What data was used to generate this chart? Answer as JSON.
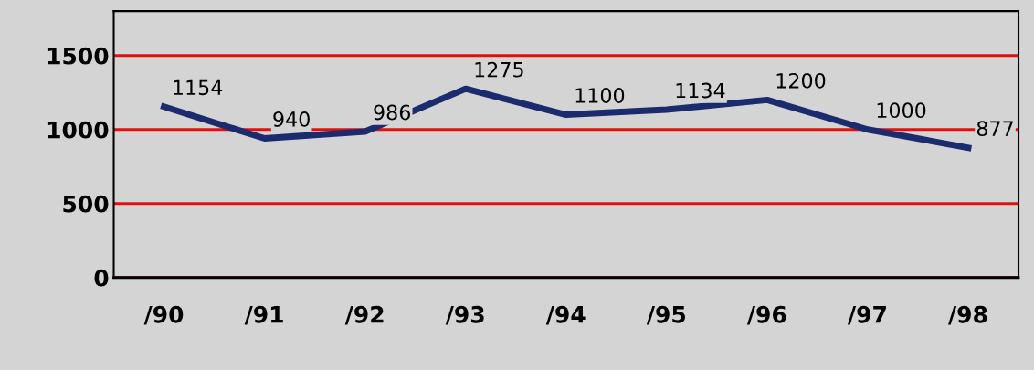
{
  "chart_data": {
    "type": "line",
    "categories": [
      "/90",
      "/91",
      "/92",
      "/93",
      "/94",
      "/95",
      "/96",
      "/97",
      "/98"
    ],
    "series": [
      {
        "color": "#1c2a6e",
        "values": [
          1154,
          940,
          986,
          1275,
          1100,
          1134,
          1200,
          1000,
          877
        ]
      }
    ],
    "ylim": [
      0,
      1800
    ],
    "yticks": [
      0,
      500,
      1000,
      1500
    ],
    "grid": "y",
    "data_labels": true,
    "marker": "none",
    "line_style": "solid",
    "legend": false
  }
}
